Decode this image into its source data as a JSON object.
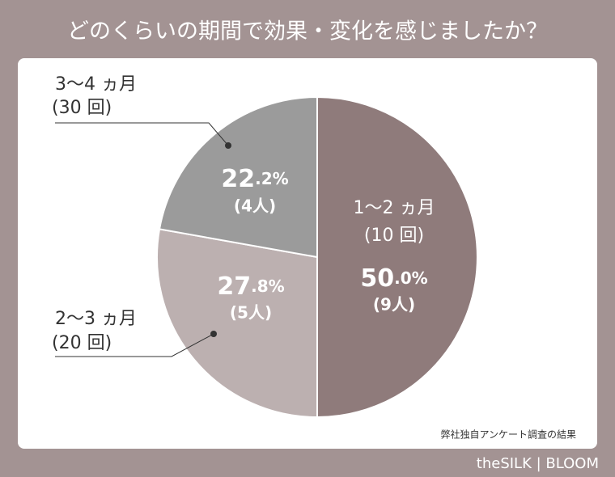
{
  "chart_data": {
    "type": "pie",
    "title": "どのくらいの期間で効果・変化を感じましたか？",
    "categories": [
      "1〜2 ヵ月",
      "2〜3 ヵ月",
      "3〜4 ヵ月"
    ],
    "sublabels": [
      "(10 回)",
      "(20 回)",
      "(30 回)"
    ],
    "values": [
      50.0,
      27.8,
      22.2
    ],
    "value_labels": [
      "50.0%",
      "27.8%",
      "22.2%"
    ],
    "counts": [
      9,
      5,
      4
    ],
    "count_labels": [
      "(9人)",
      "(5人)",
      "(4人)"
    ],
    "colors": [
      "#8f7b7b",
      "#bcb0b0",
      "#9b9b9b"
    ],
    "source": "弊社独自アンケート調査の結果",
    "brand": "theSILK | BLOOM"
  }
}
